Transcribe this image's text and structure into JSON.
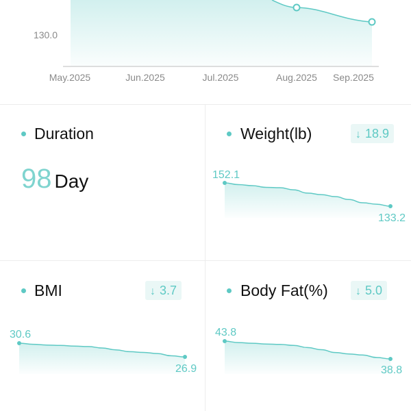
{
  "top_chart": {
    "y_tick_label": "130.0",
    "x_labels": [
      "May.2025",
      "Jun.2025",
      "Jul.2025",
      "Aug.2025",
      "Sep.2025"
    ]
  },
  "duration": {
    "title": "Duration",
    "value": "98",
    "unit": "Day"
  },
  "weight": {
    "title": "Weight(lb)",
    "change": "18.9",
    "start_label": "152.1",
    "end_label": "133.2",
    "values": [
      152.1,
      150.7,
      149.9,
      148.5,
      148.2,
      146.5,
      143.8,
      142.6,
      141.0,
      138.6,
      136.0,
      134.8,
      133.2
    ]
  },
  "bmi": {
    "title": "BMI",
    "change": "3.7",
    "start_label": "30.6",
    "end_label": "26.9",
    "values": [
      30.6,
      30.3,
      30.1,
      30.0,
      29.8,
      29.7,
      29.3,
      28.8,
      28.3,
      28.1,
      27.8,
      27.2,
      26.9
    ]
  },
  "body_fat": {
    "title": "Body Fat(%)",
    "change": "5.0",
    "start_label": "43.8",
    "end_label": "38.8",
    "values": [
      43.8,
      43.4,
      43.2,
      43.0,
      42.9,
      42.6,
      42.0,
      41.4,
      40.6,
      40.2,
      39.9,
      39.2,
      38.8
    ]
  },
  "colors": {
    "accent": "#5ec9c4",
    "accent_light": "#7fd4cf",
    "badge_bg": "#eaf7f6"
  }
}
